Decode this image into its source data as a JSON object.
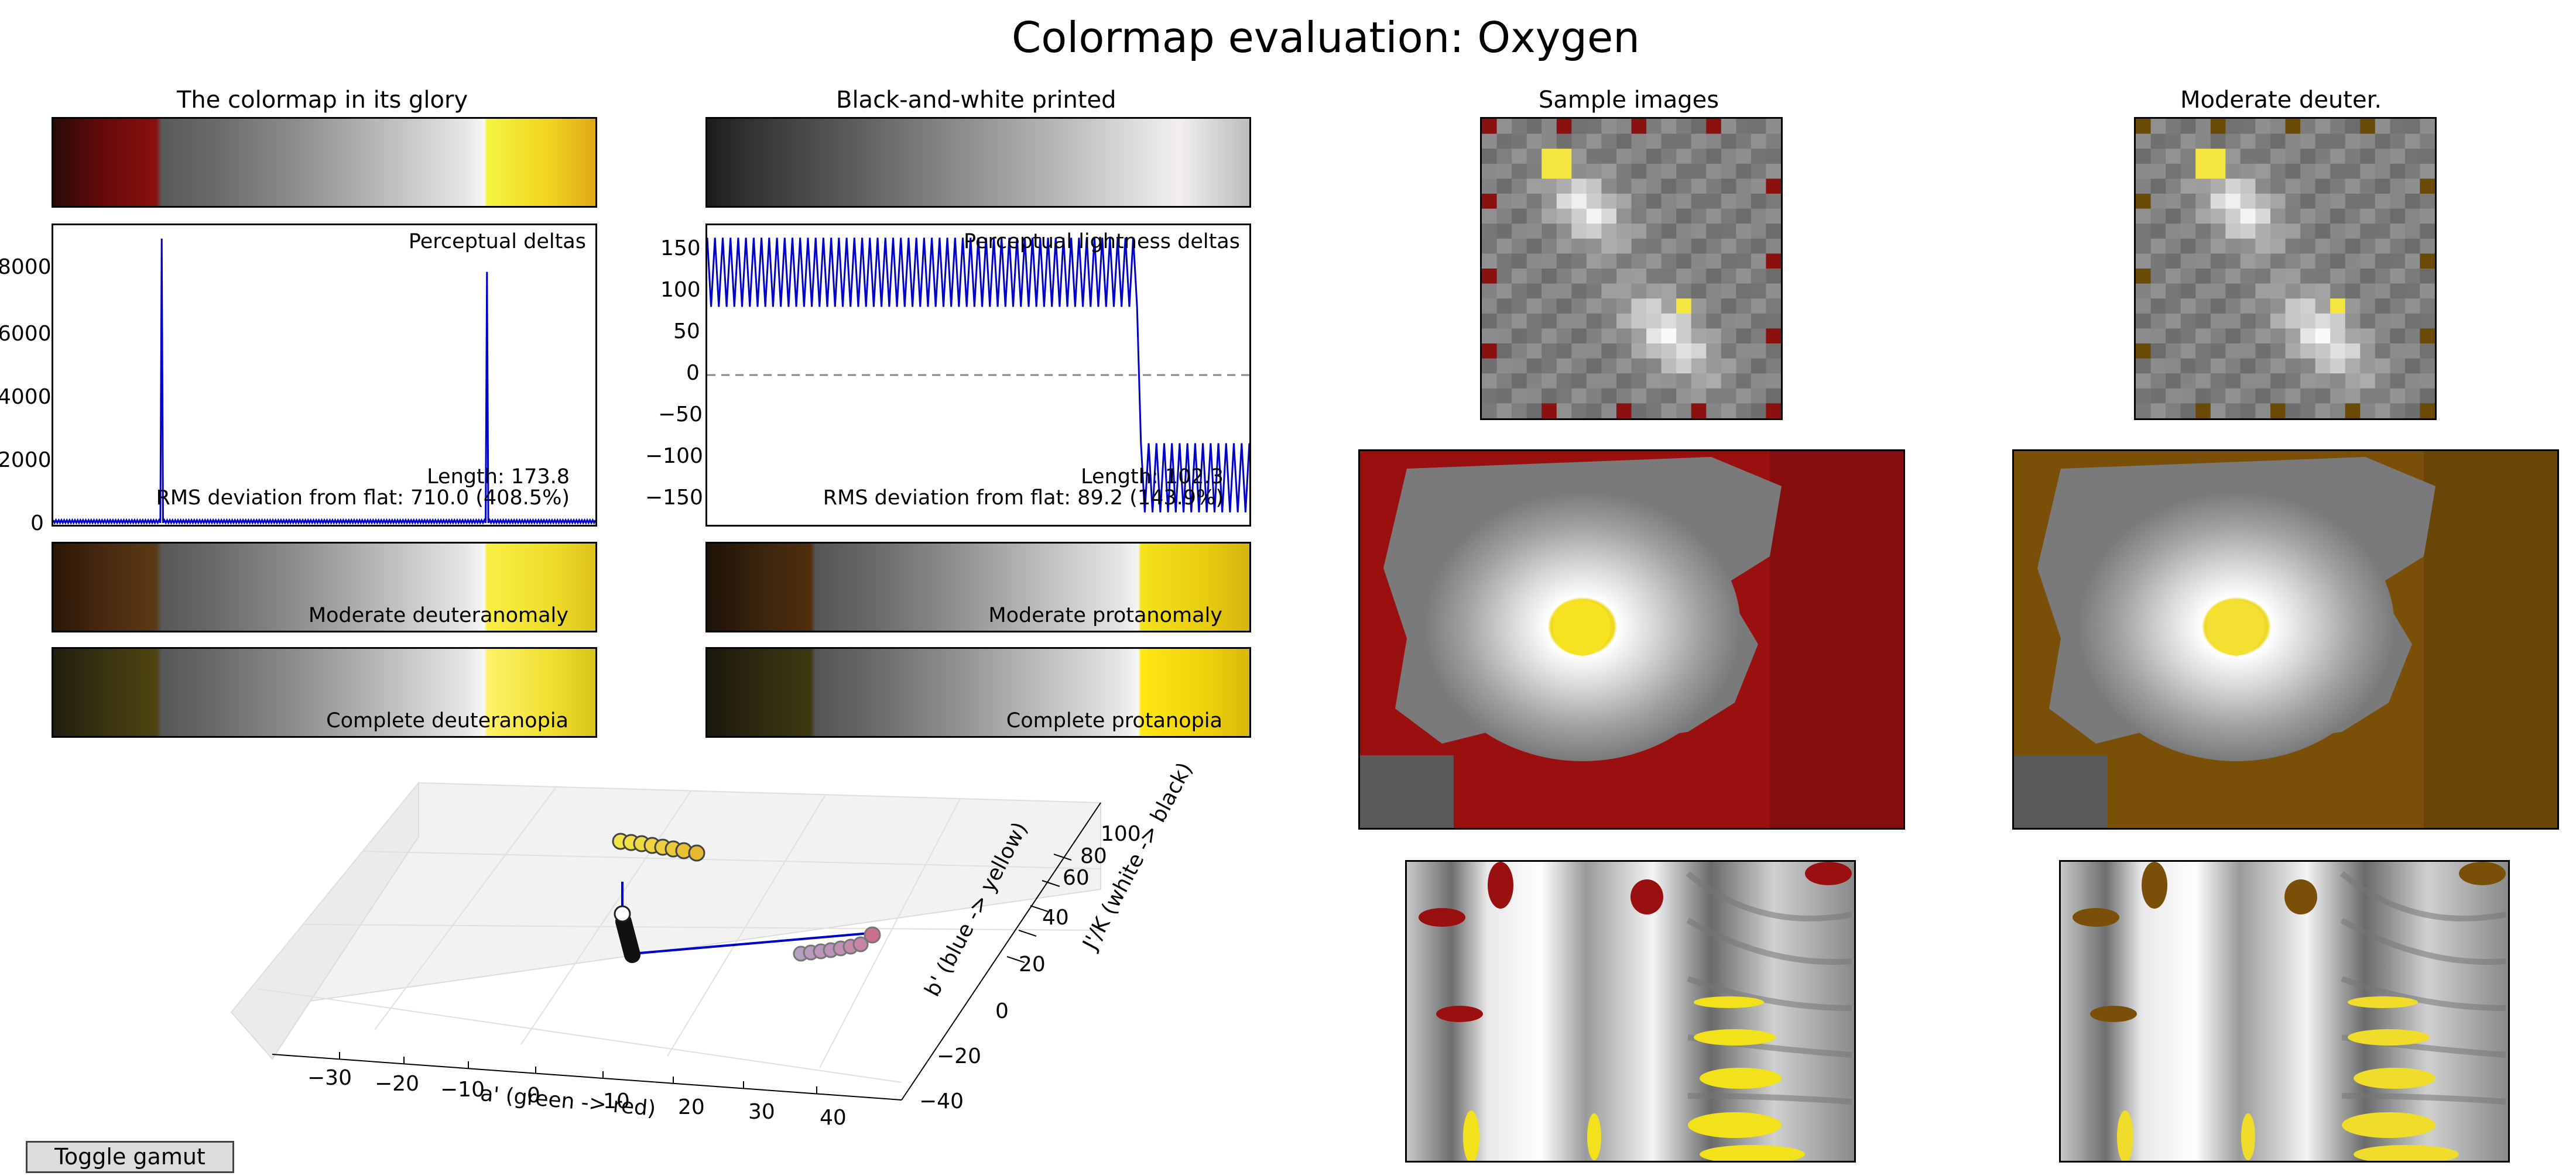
{
  "title": "Colormap evaluation: Oxygen",
  "panels": {
    "glory": "The colormap in its glory",
    "bw": "Black-and-white printed",
    "sample": "Sample images",
    "deuter": "Moderate deuter."
  },
  "button": {
    "label": "Toggle gamut"
  },
  "colors": {
    "line": "#0000cc",
    "dark_red": "#8b1010",
    "gray_mid": "#8e8e8e",
    "yellow": "#f5e642",
    "deuter_brown": "#6a4a08"
  },
  "chart_data": [
    {
      "type": "line",
      "name": "perceptual_deltas",
      "annotation": "Perceptual deltas",
      "yticks": [
        "0",
        "2000",
        "4000",
        "6000",
        "8000"
      ],
      "ylim": [
        0,
        9000
      ],
      "x": [
        0,
        0.2,
        0.201,
        0.203,
        0.8,
        0.801,
        0.803,
        1
      ],
      "y": [
        60,
        60,
        8600,
        60,
        60,
        7600,
        60,
        60
      ],
      "baseline_ripple": 80,
      "length_text": "Length: 173.8",
      "rms_text": "RMS deviation from flat: 710.0 (408.5%)"
    },
    {
      "type": "line",
      "name": "perceptual_lightness_deltas",
      "annotation": "Perceptual lightness deltas",
      "yticks": [
        "150",
        "100",
        "50",
        "0",
        "−50",
        "−100",
        "−150"
      ],
      "ylim": [
        -180,
        180
      ],
      "oscillation_low_segment": {
        "x_end": 0.8,
        "high": 165,
        "low": 82
      },
      "oscillation_high_segment": {
        "x_start": 0.8,
        "high": -82,
        "low": -165
      },
      "zero_line": "dashed",
      "length_text": "Length: 102.3",
      "rms_text": "RMS deviation from flat: 89.2 (143.9%)"
    },
    {
      "type": "scatter",
      "name": "gamut_3d",
      "xlabel": "a' (green -> red)",
      "ylabel": "b' (blue -> yellow)",
      "zlabel": "J'/K (white -> black)",
      "xticks": [
        "−30",
        "−20",
        "−10",
        "0",
        "10",
        "20",
        "30",
        "40"
      ],
      "yticks": [
        "−40",
        "−20",
        "0",
        "20",
        "40"
      ],
      "zticks": [
        "60",
        "80",
        "100"
      ]
    }
  ],
  "colorbars": {
    "mod_deut": "Moderate deuteranomaly",
    "comp_deut": "Complete deuteranopia",
    "mod_prot": "Moderate protanomaly",
    "comp_prot": "Complete protanopia"
  }
}
